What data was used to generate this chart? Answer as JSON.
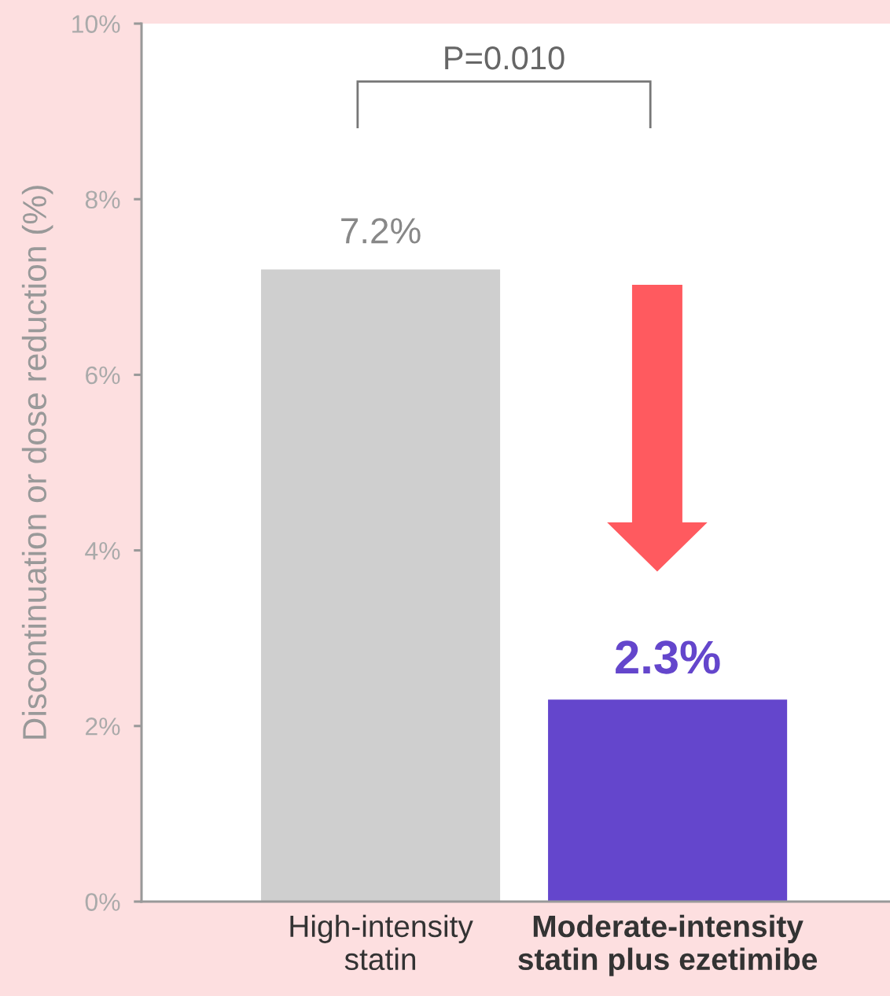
{
  "chart_data": {
    "type": "bar",
    "categories": [
      "High-intensity\nstatin",
      "Moderate-intensity\nstatin plus ezetimibe"
    ],
    "values": [
      7.2,
      2.3
    ],
    "colors": [
      "#cfcfcf",
      "#6446cc"
    ],
    "value_labels": [
      "7.2%",
      "2.3%"
    ],
    "ylabel": "Discontinuation or dose reduction (%)",
    "ylim": [
      0,
      10
    ],
    "yticks": [
      {
        "value": 0,
        "label": "0%"
      },
      {
        "value": 2,
        "label": "2%"
      },
      {
        "value": 4,
        "label": "4%"
      },
      {
        "value": 6,
        "label": "6%"
      },
      {
        "value": 8,
        "label": "8%"
      },
      {
        "value": 10,
        "label": "10%"
      }
    ],
    "annotations": [
      "P=0.010"
    ],
    "grid": false
  }
}
